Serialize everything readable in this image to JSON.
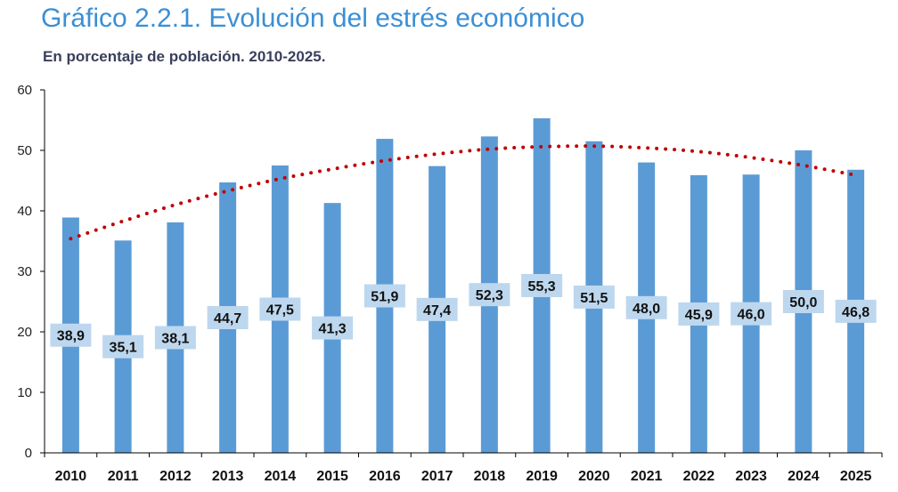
{
  "header": {
    "title": "Gráfico 2.2.1. Evolución del estrés económico",
    "subtitle": "En porcentaje de población. 2010-2025."
  },
  "chart_data": {
    "type": "bar",
    "categories": [
      "2010",
      "2011",
      "2012",
      "2013",
      "2014",
      "2015",
      "2016",
      "2017",
      "2018",
      "2019",
      "2020",
      "2021",
      "2022",
      "2023",
      "2024",
      "2025"
    ],
    "values": [
      38.9,
      35.1,
      38.1,
      44.7,
      47.5,
      41.3,
      51.9,
      47.4,
      52.3,
      55.3,
      51.5,
      48.0,
      45.9,
      46.0,
      50.0,
      46.8
    ],
    "data_labels": [
      "38,9",
      "35,1",
      "38,1",
      "44,7",
      "47,5",
      "41,3",
      "51,9",
      "47,4",
      "52,3",
      "55,3",
      "51,5",
      "48,0",
      "45,9",
      "46,0",
      "50,0",
      "46,8"
    ],
    "trendline": {
      "type": "polynomial",
      "style": "dotted",
      "color": "#c00000",
      "values": [
        35.4,
        38.3,
        41.0,
        43.3,
        45.3,
        46.9,
        48.3,
        49.4,
        50.2,
        50.6,
        50.7,
        50.4,
        49.8,
        48.8,
        47.5,
        45.9
      ]
    },
    "title": "",
    "xlabel": "",
    "ylabel": "",
    "ylim": [
      0,
      60
    ],
    "yticks": [
      0,
      10,
      20,
      30,
      40,
      50,
      60
    ],
    "grid": false,
    "legend": "none",
    "colors": {
      "bar": "#5b9bd5",
      "label_bg": "#bdd7ee",
      "axis": "#000000"
    }
  }
}
